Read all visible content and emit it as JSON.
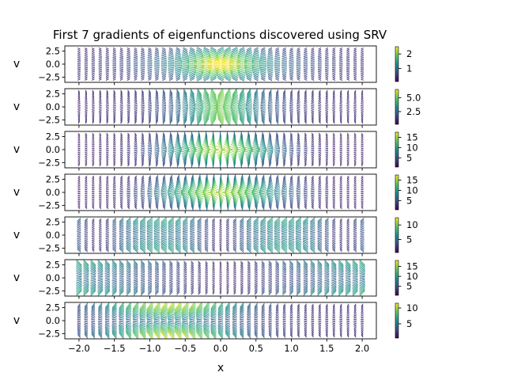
{
  "chart_data": {
    "type": "quiver",
    "title": "First 7 gradients of eigenfunctions discovered using SRV",
    "xlabel": "x",
    "ylabel": "v",
    "xlim": [
      -2.2,
      2.2
    ],
    "ylim": [
      -3.5,
      3.5
    ],
    "x_ticks": [
      -2.0,
      -1.5,
      -1.0,
      -0.5,
      0.0,
      0.5,
      1.0,
      1.5,
      2.0
    ],
    "x_tick_labels": [
      "−2.0",
      "−1.5",
      "−1.0",
      "−0.5",
      "0.0",
      "0.5",
      "1.0",
      "1.5",
      "2.0"
    ],
    "y_ticks": [
      2.5,
      0.0,
      -2.5
    ],
    "y_tick_labels": [
      "2.5",
      "0.0",
      "−2.5"
    ],
    "colormap": "viridis",
    "colors": [
      "#440154",
      "#3b528b",
      "#21918c",
      "#5ec962",
      "#fde725"
    ],
    "grid": false,
    "panels": [
      {
        "index": 1,
        "colorbar_ticks": [
          1,
          2
        ],
        "colorbar_labels": [
          "1",
          "2"
        ],
        "colorbar_range": [
          0.1,
          2.5
        ]
      },
      {
        "index": 2,
        "colorbar_ticks": [
          2.5,
          5.0
        ],
        "colorbar_labels": [
          "2.5",
          "5.0"
        ],
        "colorbar_range": [
          0.2,
          6.5
        ]
      },
      {
        "index": 3,
        "colorbar_ticks": [
          5,
          10,
          15
        ],
        "colorbar_labels": [
          "5",
          "10",
          "15"
        ],
        "colorbar_range": [
          0.5,
          17.5
        ]
      },
      {
        "index": 4,
        "colorbar_ticks": [
          5,
          10,
          15
        ],
        "colorbar_labels": [
          "5",
          "10",
          "15"
        ],
        "colorbar_range": [
          0.5,
          17.5
        ]
      },
      {
        "index": 5,
        "colorbar_ticks": [
          5,
          10
        ],
        "colorbar_labels": [
          "5",
          "10"
        ],
        "colorbar_range": [
          0.5,
          12.5
        ]
      },
      {
        "index": 6,
        "colorbar_ticks": [
          5,
          10,
          15
        ],
        "colorbar_labels": [
          "5",
          "10",
          "15"
        ],
        "colorbar_range": [
          0.5,
          18
        ]
      },
      {
        "index": 7,
        "colorbar_ticks": [
          5,
          10
        ],
        "colorbar_labels": [
          "5",
          "10"
        ],
        "colorbar_range": [
          0.5,
          11.5
        ]
      }
    ]
  }
}
